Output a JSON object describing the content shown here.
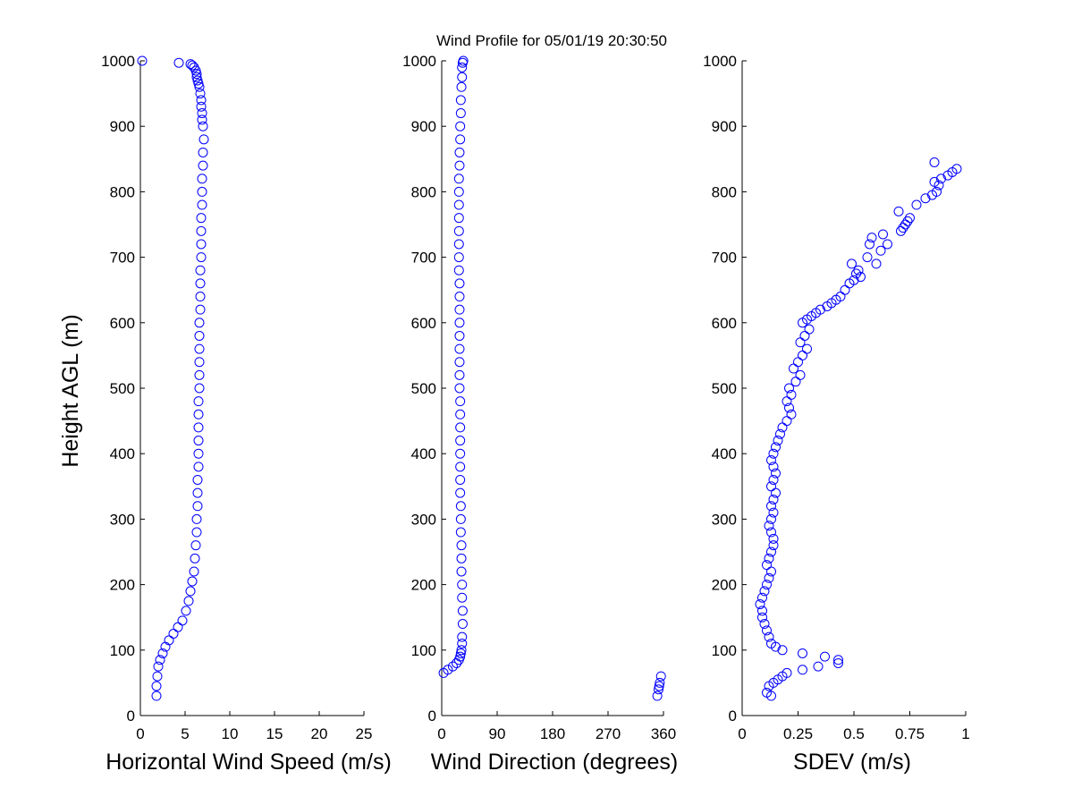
{
  "chart_data": [
    {
      "type": "scatter",
      "title": "Wind Profile for  05/01/19 20:30:50",
      "xlabel": "Horizontal Wind Speed (m/s)",
      "ylabel": "Height AGL (m)",
      "xlim": [
        0,
        25
      ],
      "ylim": [
        0,
        1000
      ],
      "xticks": [
        "0",
        "5",
        "10",
        "15",
        "20",
        "25"
      ],
      "yticks": [
        "0",
        "100",
        "200",
        "300",
        "400",
        "500",
        "600",
        "700",
        "800",
        "900",
        "1000"
      ],
      "marker": "circle",
      "marker_color": "#0000ff",
      "x": [
        1.8,
        1.8,
        1.9,
        2.0,
        2.2,
        2.5,
        2.8,
        3.2,
        3.7,
        4.2,
        4.7,
        5.1,
        5.4,
        5.6,
        5.8,
        6.0,
        6.1,
        6.2,
        6.3,
        6.3,
        6.4,
        6.4,
        6.4,
        6.5,
        6.5,
        6.5,
        6.5,
        6.5,
        6.5,
        6.6,
        6.6,
        6.6,
        6.6,
        6.6,
        6.6,
        6.7,
        6.7,
        6.7,
        6.7,
        6.8,
        6.8,
        6.8,
        6.8,
        6.9,
        6.9,
        6.9,
        7.0,
        7.0,
        7.1,
        7.0,
        6.9,
        6.9,
        6.8,
        6.8,
        6.7,
        6.6,
        6.5,
        6.4,
        6.3,
        6.3,
        6.2,
        6.0,
        5.8,
        5.6,
        4.3,
        0.2
      ],
      "y": [
        30,
        45,
        60,
        75,
        85,
        95,
        105,
        115,
        125,
        135,
        145,
        160,
        175,
        190,
        205,
        220,
        240,
        260,
        280,
        300,
        320,
        340,
        360,
        380,
        400,
        420,
        440,
        460,
        480,
        500,
        520,
        540,
        560,
        580,
        600,
        620,
        640,
        660,
        680,
        700,
        720,
        740,
        760,
        780,
        800,
        820,
        840,
        860,
        880,
        900,
        910,
        920,
        930,
        940,
        950,
        960,
        965,
        970,
        975,
        980,
        985,
        990,
        993,
        995,
        997,
        1000
      ]
    },
    {
      "type": "scatter",
      "xlabel": "Wind Direction (degrees)",
      "ylabel": "",
      "xlim": [
        0,
        360
      ],
      "ylim": [
        0,
        1000
      ],
      "xticks": [
        "0",
        "90",
        "180",
        "270",
        "360"
      ],
      "yticks": [
        "0",
        "100",
        "200",
        "300",
        "400",
        "500",
        "600",
        "700",
        "800",
        "900",
        "1000"
      ],
      "marker": "circle",
      "marker_color": "#0000ff",
      "x": [
        3,
        10,
        18,
        24,
        28,
        30,
        31,
        32,
        33,
        33,
        34,
        34,
        33,
        33,
        32,
        32,
        32,
        31,
        31,
        31,
        30,
        30,
        30,
        30,
        30,
        30,
        30,
        30,
        29,
        29,
        29,
        29,
        29,
        29,
        29,
        29,
        29,
        28,
        28,
        28,
        28,
        28,
        28,
        28,
        28,
        29,
        29,
        30,
        30,
        31,
        31,
        32,
        33,
        33,
        34,
        35,
        350,
        352,
        353,
        354,
        356
      ],
      "y": [
        65,
        70,
        75,
        80,
        85,
        90,
        95,
        100,
        110,
        120,
        140,
        160,
        180,
        200,
        220,
        240,
        260,
        280,
        300,
        320,
        340,
        360,
        380,
        400,
        420,
        440,
        460,
        480,
        500,
        520,
        540,
        560,
        580,
        600,
        620,
        640,
        660,
        680,
        700,
        720,
        740,
        760,
        780,
        800,
        820,
        840,
        860,
        880,
        900,
        920,
        940,
        960,
        975,
        990,
        997,
        1000,
        30,
        40,
        45,
        50,
        60
      ]
    },
    {
      "type": "scatter",
      "xlabel": "SDEV  (m/s)",
      "ylabel": "",
      "xlim": [
        0,
        1
      ],
      "ylim": [
        0,
        1000
      ],
      "xticks": [
        "0",
        "0.25",
        "0.5",
        "0.75",
        "1"
      ],
      "yticks": [
        "0",
        "100",
        "200",
        "300",
        "400",
        "500",
        "600",
        "700",
        "800",
        "900",
        "1000"
      ],
      "marker": "circle",
      "marker_color": "#0000ff",
      "x": [
        0.11,
        0.13,
        0.12,
        0.14,
        0.16,
        0.18,
        0.2,
        0.27,
        0.34,
        0.37,
        0.43,
        0.43,
        0.27,
        0.18,
        0.15,
        0.13,
        0.12,
        0.11,
        0.1,
        0.09,
        0.09,
        0.08,
        0.09,
        0.1,
        0.11,
        0.12,
        0.13,
        0.11,
        0.12,
        0.13,
        0.14,
        0.14,
        0.13,
        0.12,
        0.13,
        0.14,
        0.13,
        0.14,
        0.15,
        0.13,
        0.14,
        0.15,
        0.14,
        0.13,
        0.14,
        0.15,
        0.16,
        0.17,
        0.18,
        0.2,
        0.22,
        0.21,
        0.2,
        0.22,
        0.21,
        0.24,
        0.26,
        0.23,
        0.25,
        0.27,
        0.29,
        0.26,
        0.28,
        0.3,
        0.27,
        0.29,
        0.31,
        0.33,
        0.35,
        0.38,
        0.4,
        0.42,
        0.44,
        0.46,
        0.48,
        0.5,
        0.53,
        0.51,
        0.52,
        0.49,
        0.56,
        0.6,
        0.57,
        0.62,
        0.58,
        0.65,
        0.63,
        0.71,
        0.73,
        0.75,
        0.7,
        0.72,
        0.74,
        0.78,
        0.82,
        0.85,
        0.87,
        0.88,
        0.86,
        0.89,
        0.92,
        0.94,
        0.96,
        0.86
      ],
      "y": [
        35,
        30,
        45,
        50,
        55,
        60,
        65,
        70,
        75,
        90,
        85,
        80,
        95,
        100,
        105,
        110,
        120,
        130,
        140,
        150,
        160,
        170,
        180,
        190,
        200,
        210,
        220,
        230,
        240,
        250,
        260,
        270,
        280,
        290,
        300,
        310,
        320,
        330,
        340,
        350,
        360,
        370,
        380,
        390,
        400,
        410,
        420,
        430,
        440,
        450,
        460,
        470,
        480,
        490,
        500,
        510,
        520,
        530,
        540,
        550,
        560,
        570,
        580,
        590,
        600,
        605,
        610,
        615,
        620,
        625,
        630,
        635,
        640,
        650,
        660,
        665,
        670,
        675,
        680,
        690,
        700,
        690,
        720,
        710,
        730,
        720,
        735,
        740,
        750,
        760,
        770,
        745,
        755,
        780,
        790,
        795,
        800,
        810,
        815,
        820,
        825,
        830,
        835,
        845
      ]
    }
  ]
}
